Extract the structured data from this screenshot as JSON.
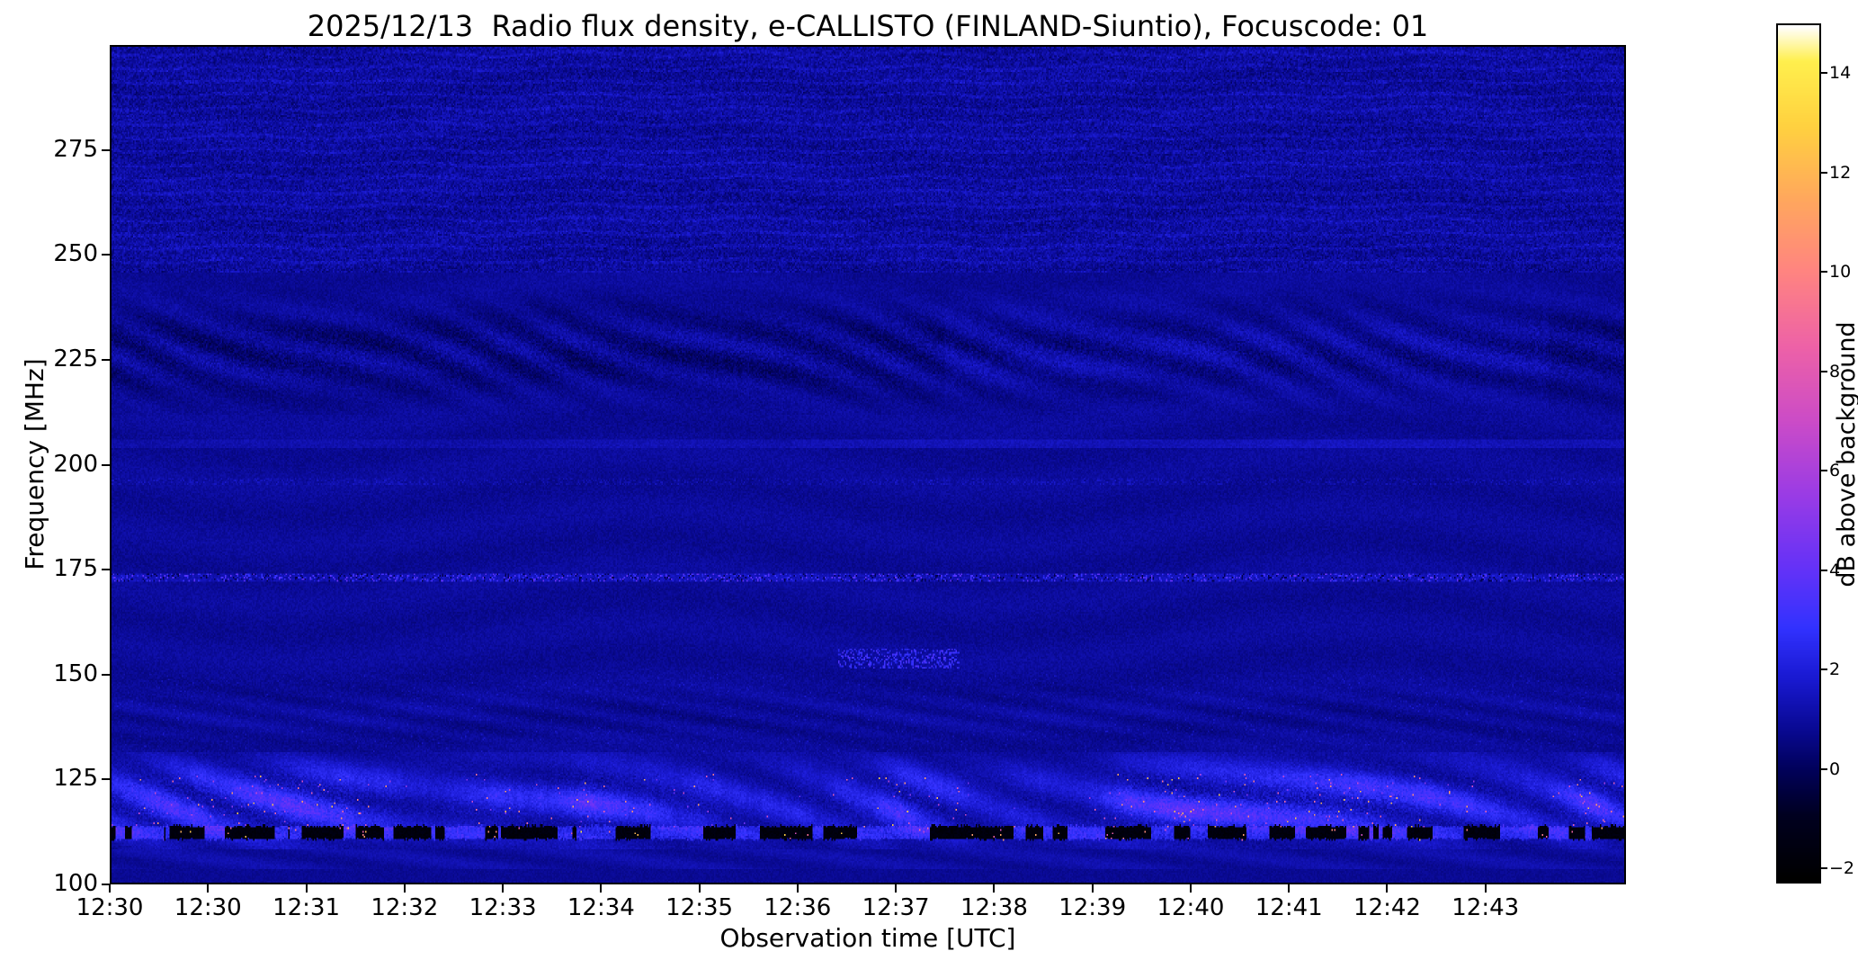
{
  "chart_data": {
    "type": "heatmap",
    "title": "2025/12/13  Radio flux density, e-CALLISTO (FINLAND-Siuntio), Focuscode: 01",
    "date": "2025/12/13",
    "station": "FINLAND-Siuntio",
    "focuscode": "01",
    "xlabel": "Observation time [UTC]",
    "ylabel": "Frequency [MHz]",
    "x_ticks": [
      "12:30",
      "12:30",
      "12:31",
      "12:32",
      "12:33",
      "12:34",
      "12:35",
      "12:36",
      "12:37",
      "12:38",
      "12:39",
      "12:40",
      "12:41",
      "12:42",
      "12:43"
    ],
    "y_ticks": [
      275,
      250,
      225,
      200,
      175,
      150,
      125,
      100
    ],
    "y_range": [
      100,
      300
    ],
    "grid": false,
    "colorbar": {
      "label": "dB above background",
      "ticks": [
        -2,
        0,
        2,
        4,
        6,
        8,
        10,
        12,
        14
      ],
      "tick_labels": [
        "−2",
        "0",
        "2",
        "4",
        "6",
        "8",
        "10",
        "12",
        "14"
      ],
      "range": [
        -2.3,
        15.0
      ],
      "position": "right",
      "stops": [
        [
          -2.3,
          "#000000"
        ],
        [
          -1.0,
          "#000020"
        ],
        [
          0.0,
          "#02025e"
        ],
        [
          0.8,
          "#0a0a96"
        ],
        [
          1.8,
          "#1a1ad2"
        ],
        [
          2.8,
          "#3232ff"
        ],
        [
          4.0,
          "#6432f8"
        ],
        [
          5.5,
          "#9a3ce6"
        ],
        [
          7.0,
          "#cc4cc8"
        ],
        [
          8.5,
          "#ee62a8"
        ],
        [
          10.0,
          "#ff8482"
        ],
        [
          11.5,
          "#ffa85e"
        ],
        [
          13.0,
          "#ffd240"
        ],
        [
          14.3,
          "#fff04e"
        ],
        [
          15.0,
          "#ffffff"
        ]
      ]
    },
    "features": [
      {
        "name": "quiet-background",
        "level_db": 0.6,
        "noise_db": 0.55
      },
      {
        "name": "upper-speckle-band",
        "freq_range": [
          246,
          300
        ],
        "texture_db": 1.1
      },
      {
        "name": "interference-wave-band",
        "freq_range": [
          212,
          242
        ],
        "center_freq": 227,
        "amplitude_db": 0.9
      },
      {
        "name": "faint-horizontal-line",
        "freq": 205,
        "boost_db": 0.4
      },
      {
        "name": "rfi-speckle-line",
        "freq": 173,
        "dot_db_range": [
          1.6,
          4.2
        ],
        "dot_probability": 0.18
      },
      {
        "name": "blue-dash-group",
        "freq_range": [
          151,
          156
        ],
        "time_fraction_range": [
          0.48,
          0.56
        ],
        "level_db_range": [
          2.0,
          3.6
        ]
      },
      {
        "name": "active-lower-band",
        "freq_range": [
          103,
          131
        ],
        "center_freq": 119,
        "wave_amplitude_db": 1.7,
        "bright_spot_db_range": [
          4,
          13
        ],
        "bright_spot_probability": 0.006
      },
      {
        "name": "black-rfi-line",
        "freq_range": [
          110.3,
          113.4
        ],
        "level_db": -1.8,
        "embedded_bright_spot_db_range": [
          7,
          13
        ]
      },
      {
        "name": "bottom-quiet-strip",
        "freq_range": [
          100,
          108
        ],
        "level_db": 0.85
      }
    ]
  }
}
